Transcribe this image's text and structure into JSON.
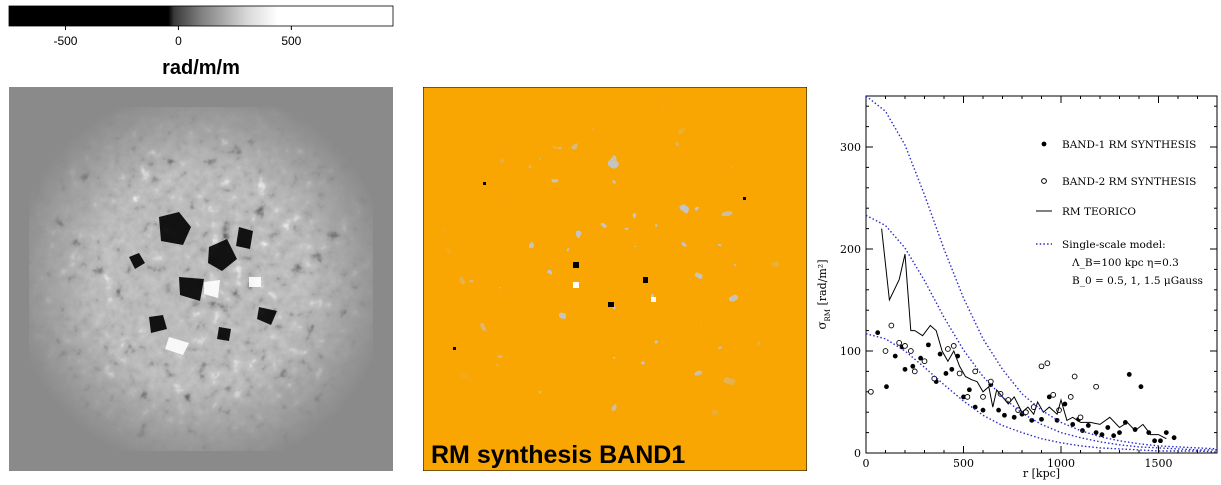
{
  "colorbar": {
    "ticks": [
      "-500",
      "0",
      "500"
    ],
    "tick_values": [
      -500,
      0,
      500
    ],
    "range": [
      -750,
      950
    ],
    "unit_label": "rad/m/m"
  },
  "band1_panel": {
    "caption": "RM synthesis BAND1",
    "background_color": "#f9a602"
  },
  "chart_data": {
    "type": "scatter",
    "xlabel": "r [kpc]",
    "ylabel_main": "σ",
    "ylabel_sub": "RM",
    "ylabel_unit": "[rad/m²]",
    "xlim": [
      0,
      1800
    ],
    "ylim": [
      0,
      350
    ],
    "xticks": [
      0,
      500,
      1000,
      1500
    ],
    "yticks": [
      0,
      100,
      200,
      300
    ],
    "legend": [
      {
        "marker": "filled-circle",
        "label": "BAND-1 RM SYNTHESIS"
      },
      {
        "marker": "open-circle",
        "label": "BAND-2 RM SYNTHESIS"
      },
      {
        "marker": "solid-line",
        "label": "RM TEORICO"
      },
      {
        "marker": "dotted-line",
        "label": "Single-scale model:"
      },
      {
        "marker": "none",
        "label": "Λ_B=100 kpc  η=0.3"
      },
      {
        "marker": "none",
        "label": "B_0 = 0.5, 1, 1.5 μGauss"
      }
    ],
    "series": [
      {
        "name": "BAND-1 RM SYNTHESIS",
        "style": "filled-circle",
        "points": [
          [
            60,
            118
          ],
          [
            105,
            65
          ],
          [
            150,
            95
          ],
          [
            185,
            104
          ],
          [
            200,
            82
          ],
          [
            240,
            85
          ],
          [
            280,
            93
          ],
          [
            320,
            106
          ],
          [
            360,
            70
          ],
          [
            380,
            97
          ],
          [
            410,
            78
          ],
          [
            440,
            82
          ],
          [
            470,
            95
          ],
          [
            500,
            55
          ],
          [
            530,
            62
          ],
          [
            560,
            45
          ],
          [
            600,
            42
          ],
          [
            640,
            67
          ],
          [
            680,
            42
          ],
          [
            710,
            37
          ],
          [
            760,
            35
          ],
          [
            800,
            38
          ],
          [
            850,
            32
          ],
          [
            900,
            33
          ],
          [
            940,
            55
          ],
          [
            980,
            32
          ],
          [
            1020,
            48
          ],
          [
            1060,
            28
          ],
          [
            1090,
            33
          ],
          [
            1110,
            22
          ],
          [
            1140,
            27
          ],
          [
            1180,
            20
          ],
          [
            1210,
            18
          ],
          [
            1240,
            25
          ],
          [
            1270,
            17
          ],
          [
            1300,
            20
          ],
          [
            1330,
            30
          ],
          [
            1350,
            77
          ],
          [
            1380,
            23
          ],
          [
            1410,
            65
          ],
          [
            1450,
            20
          ],
          [
            1480,
            12
          ],
          [
            1510,
            12
          ],
          [
            1540,
            20
          ],
          [
            1580,
            15
          ]
        ]
      },
      {
        "name": "BAND-2 RM SYNTHESIS",
        "style": "open-circle",
        "points": [
          [
            25,
            60
          ],
          [
            100,
            100
          ],
          [
            130,
            125
          ],
          [
            170,
            108
          ],
          [
            200,
            105
          ],
          [
            230,
            100
          ],
          [
            250,
            80
          ],
          [
            300,
            90
          ],
          [
            350,
            73
          ],
          [
            420,
            102
          ],
          [
            450,
            105
          ],
          [
            480,
            78
          ],
          [
            520,
            55
          ],
          [
            560,
            80
          ],
          [
            600,
            55
          ],
          [
            640,
            70
          ],
          [
            690,
            58
          ],
          [
            730,
            52
          ],
          [
            780,
            42
          ],
          [
            820,
            40
          ],
          [
            860,
            45
          ],
          [
            900,
            85
          ],
          [
            930,
            88
          ],
          [
            960,
            57
          ],
          [
            990,
            42
          ],
          [
            1050,
            55
          ],
          [
            1070,
            75
          ],
          [
            1100,
            35
          ],
          [
            1180,
            65
          ]
        ]
      },
      {
        "name": "RM TEORICO",
        "style": "solid-line",
        "points": [
          [
            80,
            220
          ],
          [
            120,
            150
          ],
          [
            170,
            170
          ],
          [
            200,
            195
          ],
          [
            230,
            120
          ],
          [
            250,
            120
          ],
          [
            290,
            115
          ],
          [
            330,
            125
          ],
          [
            360,
            120
          ],
          [
            390,
            100
          ],
          [
            420,
            90
          ],
          [
            450,
            100
          ],
          [
            480,
            85
          ],
          [
            510,
            75
          ],
          [
            540,
            72
          ],
          [
            570,
            70
          ],
          [
            600,
            60
          ],
          [
            630,
            65
          ],
          [
            650,
            45
          ],
          [
            670,
            62
          ],
          [
            700,
            55
          ],
          [
            730,
            48
          ],
          [
            760,
            55
          ],
          [
            800,
            40
          ],
          [
            830,
            45
          ],
          [
            860,
            38
          ],
          [
            880,
            50
          ],
          [
            910,
            40
          ],
          [
            940,
            45
          ],
          [
            980,
            38
          ],
          [
            1000,
            52
          ],
          [
            1030,
            32
          ],
          [
            1060,
            35
          ],
          [
            1100,
            30
          ],
          [
            1150,
            30
          ],
          [
            1200,
            28
          ],
          [
            1250,
            35
          ],
          [
            1300,
            25
          ],
          [
            1340,
            30
          ],
          [
            1380,
            22
          ],
          [
            1420,
            28
          ],
          [
            1460,
            18
          ],
          [
            1500,
            18
          ],
          [
            1540,
            14
          ]
        ]
      },
      {
        "name": "B_0 = 1.5 μGauss",
        "style": "dotted-line",
        "points": [
          [
            0,
            350
          ],
          [
            100,
            335
          ],
          [
            200,
            302
          ],
          [
            300,
            253
          ],
          [
            400,
            200
          ],
          [
            500,
            152
          ],
          [
            600,
            112
          ],
          [
            700,
            82
          ],
          [
            800,
            58
          ],
          [
            900,
            42
          ],
          [
            1000,
            30
          ],
          [
            1100,
            22
          ],
          [
            1200,
            16
          ],
          [
            1300,
            12
          ],
          [
            1400,
            9
          ],
          [
            1500,
            7
          ],
          [
            1600,
            6
          ],
          [
            1700,
            5
          ],
          [
            1800,
            4
          ]
        ]
      },
      {
        "name": "B_0 = 1 μGauss",
        "style": "dotted-line",
        "points": [
          [
            0,
            233
          ],
          [
            100,
            223
          ],
          [
            200,
            201
          ],
          [
            300,
            169
          ],
          [
            400,
            133
          ],
          [
            500,
            101
          ],
          [
            600,
            75
          ],
          [
            700,
            55
          ],
          [
            800,
            39
          ],
          [
            900,
            28
          ],
          [
            1000,
            20
          ],
          [
            1100,
            15
          ],
          [
            1200,
            11
          ],
          [
            1300,
            8
          ],
          [
            1400,
            6
          ],
          [
            1500,
            5
          ],
          [
            1600,
            4
          ],
          [
            1700,
            3
          ],
          [
            1800,
            3
          ]
        ]
      },
      {
        "name": "B_0 = 0.5 μGauss",
        "style": "dotted-line",
        "points": [
          [
            0,
            117
          ],
          [
            100,
            112
          ],
          [
            200,
            100
          ],
          [
            300,
            84
          ],
          [
            400,
            67
          ],
          [
            500,
            51
          ],
          [
            600,
            37
          ],
          [
            700,
            27
          ],
          [
            800,
            20
          ],
          [
            900,
            14
          ],
          [
            1000,
            10
          ],
          [
            1100,
            7
          ],
          [
            1200,
            5
          ],
          [
            1300,
            4
          ],
          [
            1400,
            3
          ],
          [
            1500,
            2
          ],
          [
            1600,
            2
          ],
          [
            1700,
            2
          ],
          [
            1800,
            1
          ]
        ]
      }
    ]
  }
}
